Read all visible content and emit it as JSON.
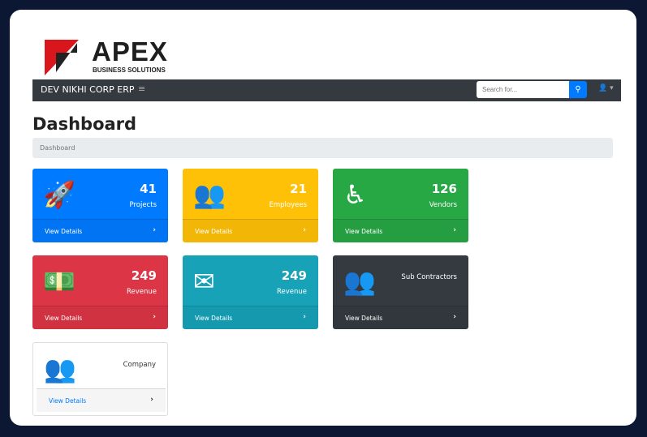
{
  "logo": {
    "text": "APEX",
    "tagline": "BUSINESS SOLUTIONS"
  },
  "navbar": {
    "brand": "DEV NIKHI CORP ERP",
    "menu_icon": "hamburger-icon",
    "search_placeholder": "Search for...",
    "search_icon": "search-icon",
    "user_icon": "user-icon"
  },
  "page": {
    "title": "Dashboard",
    "breadcrumb": "Dashboard"
  },
  "cards": [
    {
      "value": "41",
      "label": "Projects",
      "link": "View Details",
      "color": "#007bff",
      "icon": "rocket-icon"
    },
    {
      "value": "21",
      "label": "Employees",
      "link": "View Details",
      "color": "#ffc107",
      "icon": "users-icon"
    },
    {
      "value": "126",
      "label": "Vendors",
      "link": "View Details",
      "color": "#28a745",
      "icon": "accessibility-icon"
    },
    {
      "value": "249",
      "label": "Revenue",
      "link": "View Details",
      "color": "#dc3545",
      "icon": "money-bill-icon"
    },
    {
      "value": "249",
      "label": "Revenue",
      "link": "View Details",
      "color": "#17a2b8",
      "icon": "envelope-open-icon"
    },
    {
      "value": "",
      "label": "Sub Contractors",
      "link": "View Details",
      "color": "#343a40",
      "icon": "users-cog-icon"
    },
    {
      "value": "",
      "label": "Company",
      "link": "View Details",
      "color": "#ffffff",
      "icon": "users-cog-icon"
    }
  ]
}
